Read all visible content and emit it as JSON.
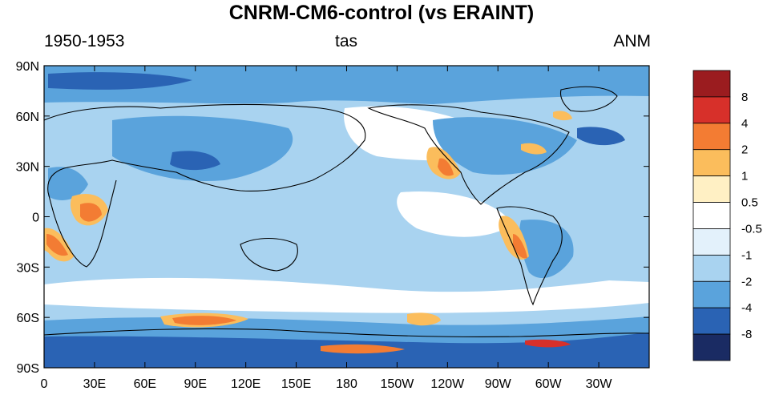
{
  "figure": {
    "title": "CNRM-CM6-control (vs ERAINT)",
    "left_label": "1950-1953",
    "center_label": "tas",
    "right_label": "ANM"
  },
  "map": {
    "projection": "cylindrical-equidistant",
    "central_longitude": 180,
    "lat_range": [
      -90,
      90
    ],
    "lat_ticks": [
      "90N",
      "60N",
      "30N",
      "0",
      "30S",
      "60S",
      "90S"
    ],
    "lon_ticks": [
      "0",
      "30E",
      "60E",
      "90E",
      "120E",
      "150E",
      "180",
      "150W",
      "120W",
      "90W",
      "60W",
      "30W"
    ]
  },
  "colorbar": {
    "levels": [
      "8",
      "4",
      "2",
      "1",
      "0.5",
      "-0.5",
      "-1",
      "-2",
      "-4",
      "-8"
    ],
    "colors": [
      "#9b1c1f",
      "#d7302a",
      "#f37c33",
      "#fbbd5c",
      "#fff0c4",
      "#ffffff",
      "#e3f1fb",
      "#a9d3f0",
      "#5aa3dc",
      "#2a63b4",
      "#1a2b63"
    ]
  },
  "colors": {
    "ocean_base": "#a9d3f0",
    "cool_mid": "#5aa3dc",
    "cool_strong": "#2a63b4",
    "cool_extreme": "#1a2b63",
    "neutral": "#ffffff",
    "warm_light": "#fff0c4",
    "warm_mid": "#fbbd5c",
    "warm_strong": "#f37c33",
    "warm_extreme": "#d7302a"
  }
}
